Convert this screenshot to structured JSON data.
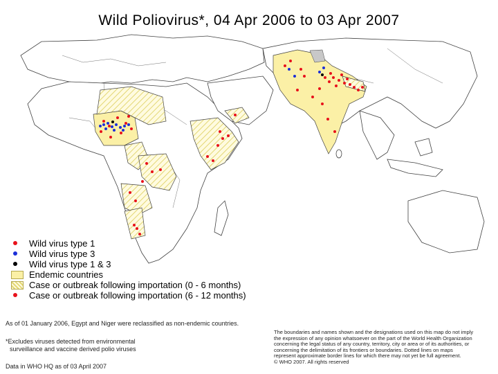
{
  "title": "Wild Poliovirus*, 04 Apr 2006 to 03 Apr 2007",
  "colors": {
    "endemic": "#fbf0a6",
    "import_recent_hatch": "#e9df7a",
    "import_older_hatch": "#e9df7a",
    "type1": "#e8111b",
    "type3": "#1c2fd8",
    "type1and3": "#000000",
    "land": "#ffffff",
    "border": "#404040",
    "gray_area": "#c8c8c8"
  },
  "legend": [
    {
      "symbol": "red-dot",
      "label": "Wild virus type 1"
    },
    {
      "symbol": "blue-dot",
      "label": "Wild virus type 3"
    },
    {
      "symbol": "black-dot",
      "label": "Wild virus type 1 & 3"
    },
    {
      "symbol": "endemic-swatch",
      "label": "Endemic countries"
    },
    {
      "symbol": "hatch-swatch",
      "label": "Case or outbreak following importation (0 - 6 months)"
    },
    {
      "symbol": "hatch-swatch-2",
      "label": "Case or outbreak following importation (6 - 12 months)"
    }
  ],
  "notes": {
    "reclassification": "As of 01 January 2006, Egypt and Niger were reclassified as non-endemic countries.",
    "footnote_1": "*Excludes viruses detected from environmental",
    "footnote_2": "surveillance and vaccine derived polio viruses",
    "data_source": "Data in WHO HQ as of 03 April 2007"
  },
  "disclaimer": [
    "The boundaries and names shown and the designations used on this map do not imply",
    "the expression of any opinion whatsoever on the part of the World Health Organization",
    "concerning the legal status of any country, territory, city or area or of its authorities, or",
    "concerning the delimitation of its frontiers or boundaries. Dotted lines on maps",
    "represent approximate border lines for which there may not yet be full agreement.",
    "© WHO 2007. All rights reserved"
  ]
}
